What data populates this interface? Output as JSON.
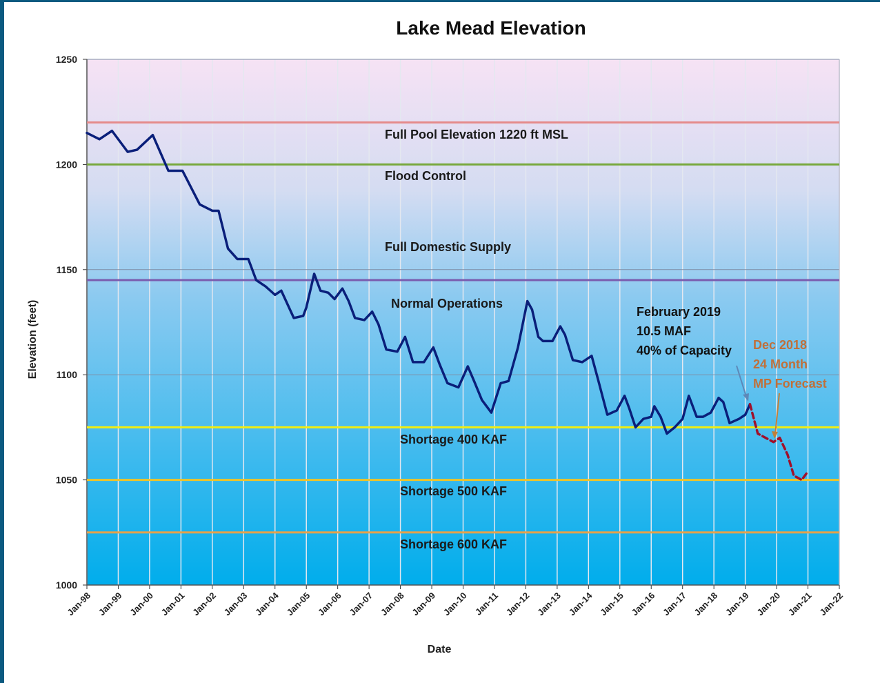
{
  "chart_data": {
    "type": "line",
    "title": "Lake Mead Elevation",
    "x_label": "Date",
    "y_label": "Elevation (feet)",
    "xlim": [
      1998,
      2022
    ],
    "xticks": [
      {
        "value": 1998,
        "label": "Jan-98"
      },
      {
        "value": 1999,
        "label": "Jan-99"
      },
      {
        "value": 2000,
        "label": "Jan-00"
      },
      {
        "value": 2001,
        "label": "Jan-01"
      },
      {
        "value": 2002,
        "label": "Jan-02"
      },
      {
        "value": 2003,
        "label": "Jan-03"
      },
      {
        "value": 2004,
        "label": "Jan-04"
      },
      {
        "value": 2005,
        "label": "Jan-05"
      },
      {
        "value": 2006,
        "label": "Jan-06"
      },
      {
        "value": 2007,
        "label": "Jan-07"
      },
      {
        "value": 2008,
        "label": "Jan-08"
      },
      {
        "value": 2009,
        "label": "Jan-09"
      },
      {
        "value": 2010,
        "label": "Jan-10"
      },
      {
        "value": 2011,
        "label": "Jan-11"
      },
      {
        "value": 2012,
        "label": "Jan-12"
      },
      {
        "value": 2013,
        "label": "Jan-13"
      },
      {
        "value": 2014,
        "label": "Jan-14"
      },
      {
        "value": 2015,
        "label": "Jan-15"
      },
      {
        "value": 2016,
        "label": "Jan-16"
      },
      {
        "value": 2017,
        "label": "Jan-17"
      },
      {
        "value": 2018,
        "label": "Jan-18"
      },
      {
        "value": 2019,
        "label": "Jan-19"
      },
      {
        "value": 2020,
        "label": "Jan-20"
      },
      {
        "value": 2021,
        "label": "Jan-21"
      },
      {
        "value": 2022,
        "label": "Jan-22"
      }
    ],
    "ylim": [
      1000,
      1250
    ],
    "yticks": [
      1000,
      1050,
      1100,
      1150,
      1200,
      1250
    ],
    "grid": true,
    "series": [
      {
        "color": "#0a1f7a",
        "style": "solid",
        "x": [
          1998.0,
          1998.4,
          1998.8,
          1999.3,
          1999.6,
          2000.1,
          2000.6,
          2001.05,
          2001.6,
          2002.0,
          2002.2,
          2002.5,
          2002.8,
          2003.15,
          2003.4,
          2003.7,
          2004.0,
          2004.2,
          2004.6,
          2004.9,
          2005.0,
          2005.25,
          2005.45,
          2005.7,
          2005.9,
          2006.15,
          2006.35,
          2006.55,
          2006.85,
          2007.1,
          2007.3,
          2007.55,
          2007.9,
          2008.15,
          2008.4,
          2008.75,
          2009.05,
          2009.25,
          2009.5,
          2009.85,
          2010.15,
          2010.35,
          2010.6,
          2010.9,
          2011.2,
          2011.45,
          2011.75,
          2012.05,
          2012.2,
          2012.4,
          2012.55,
          2012.85,
          2013.1,
          2013.25,
          2013.5,
          2013.8,
          2014.1,
          2014.3,
          2014.6,
          2014.9,
          2015.15,
          2015.3,
          2015.5,
          2015.75,
          2016.0,
          2016.1,
          2016.3,
          2016.5,
          2016.75,
          2017.0,
          2017.2,
          2017.45,
          2017.65,
          2017.9,
          2018.15,
          2018.3,
          2018.5,
          2018.8,
          2019.0,
          2019.15
        ],
        "values": [
          1215,
          1212,
          1216,
          1206,
          1207,
          1214,
          1197,
          1197,
          1181,
          1178,
          1178,
          1160,
          1155,
          1155,
          1145,
          1142,
          1138,
          1140,
          1127,
          1128,
          1132,
          1148,
          1140,
          1139,
          1136,
          1141,
          1135,
          1127,
          1126,
          1130,
          1124,
          1112,
          1111,
          1118,
          1106,
          1106,
          1113,
          1105,
          1096,
          1094,
          1104,
          1097,
          1088,
          1082,
          1096,
          1097,
          1113,
          1135,
          1131,
          1118,
          1116,
          1116,
          1123,
          1119,
          1107,
          1106,
          1109,
          1098,
          1081,
          1083,
          1090,
          1084,
          1075,
          1079,
          1080,
          1085,
          1080,
          1072,
          1075,
          1079,
          1090,
          1080,
          1080,
          1082,
          1089,
          1087,
          1077,
          1079,
          1081,
          1086
        ]
      },
      {
        "color": "#a0102a",
        "style": "dashed",
        "x": [
          2019.15,
          2019.4,
          2019.65,
          2019.9,
          2020.1,
          2020.35,
          2020.55,
          2020.8,
          2020.95
        ],
        "values": [
          1086,
          1072,
          1070,
          1068,
          1070,
          1062,
          1052,
          1050,
          1053
        ]
      }
    ],
    "reference_lines": [
      {
        "value": 1220,
        "color": "#e58a8a"
      },
      {
        "value": 1200,
        "color": "#77a83c"
      },
      {
        "value": 1145,
        "color": "#7a5cae"
      },
      {
        "value": 1075,
        "color": "#f2ee10"
      },
      {
        "value": 1050,
        "color": "#f0c428"
      },
      {
        "value": 1025,
        "color": "#e6a24a"
      }
    ],
    "zone_labels": [
      "Full Pool Elevation 1220 ft MSL",
      "Flood Control",
      "Full Domestic Supply",
      "Normal Operations",
      "Shortage 400 KAF",
      "Shortage 500 KAF",
      "Shortage 600 KAF"
    ],
    "annotations": [
      {
        "lines": [
          "February 2019",
          "10.5 MAF",
          "40% of Capacity"
        ],
        "color": "#111111"
      },
      {
        "lines": [
          "Dec 2018",
          "24 Month",
          "MP Forecast"
        ],
        "color": "#c0703a"
      }
    ]
  }
}
